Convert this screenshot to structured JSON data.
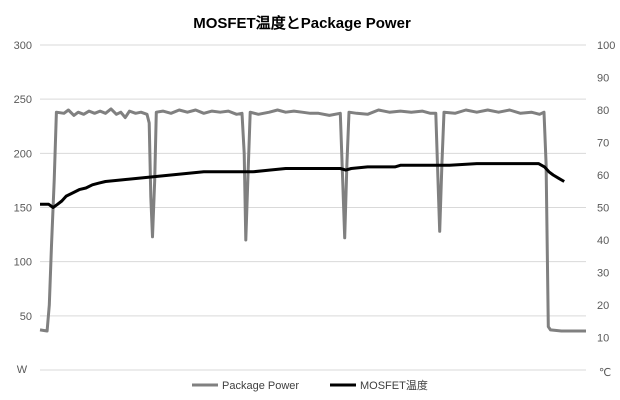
{
  "chart_data": {
    "type": "line",
    "title": "MOSFET温度とPackage Power",
    "y_left": {
      "unit": "W",
      "ticks": [
        "300",
        "250",
        "200",
        "150",
        "100",
        "50"
      ],
      "range": [
        0,
        300
      ]
    },
    "y_right": {
      "unit": "℃",
      "ticks": [
        "100",
        "90",
        "80",
        "70",
        "60",
        "50",
        "40",
        "30",
        "20",
        "10"
      ],
      "range": [
        0,
        100
      ]
    },
    "x": {
      "range": [
        0,
        100
      ],
      "tick_labels": []
    },
    "grid": {
      "horizontal": true
    },
    "legend": {
      "position": "bottom"
    },
    "series": [
      {
        "name": "Package Power",
        "axis": "left",
        "color": "#808080",
        "points": [
          [
            0,
            37
          ],
          [
            1.3,
            36
          ],
          [
            1.7,
            60
          ],
          [
            2.1,
            115
          ],
          [
            2.6,
            175
          ],
          [
            3.0,
            238
          ],
          [
            4.4,
            237
          ],
          [
            5.2,
            240
          ],
          [
            6.2,
            235
          ],
          [
            7.0,
            238
          ],
          [
            8.0,
            236
          ],
          [
            9.0,
            239
          ],
          [
            10.0,
            237
          ],
          [
            11.0,
            239
          ],
          [
            12.0,
            237
          ],
          [
            13.0,
            241
          ],
          [
            14.0,
            236
          ],
          [
            14.8,
            238
          ],
          [
            15.6,
            233
          ],
          [
            16.4,
            239
          ],
          [
            17.5,
            237
          ],
          [
            18.5,
            238
          ],
          [
            19.6,
            236
          ],
          [
            20.0,
            228
          ],
          [
            20.3,
            160
          ],
          [
            20.6,
            123
          ],
          [
            21.0,
            175
          ],
          [
            21.3,
            238
          ],
          [
            22.5,
            239
          ],
          [
            24.0,
            237
          ],
          [
            25.5,
            240
          ],
          [
            27.0,
            238
          ],
          [
            28.5,
            240
          ],
          [
            30.0,
            237
          ],
          [
            31.5,
            239
          ],
          [
            33.0,
            238
          ],
          [
            34.5,
            239
          ],
          [
            36.0,
            236
          ],
          [
            37.0,
            237
          ],
          [
            37.4,
            200
          ],
          [
            37.7,
            120
          ],
          [
            38.1,
            180
          ],
          [
            38.5,
            238
          ],
          [
            40.0,
            236
          ],
          [
            42.0,
            238
          ],
          [
            43.5,
            240
          ],
          [
            45.0,
            238
          ],
          [
            46.5,
            239
          ],
          [
            48.0,
            238
          ],
          [
            49.5,
            237
          ],
          [
            51.0,
            237
          ],
          [
            53.0,
            235
          ],
          [
            55.0,
            237
          ],
          [
            55.4,
            180
          ],
          [
            55.8,
            122
          ],
          [
            56.2,
            190
          ],
          [
            56.6,
            238
          ],
          [
            58.0,
            237
          ],
          [
            60.0,
            236
          ],
          [
            62.0,
            240
          ],
          [
            64.0,
            238
          ],
          [
            66.0,
            239
          ],
          [
            68.0,
            238
          ],
          [
            70.0,
            239
          ],
          [
            71.5,
            237
          ],
          [
            72.5,
            237
          ],
          [
            72.9,
            175
          ],
          [
            73.2,
            128
          ],
          [
            73.6,
            190
          ],
          [
            74.0,
            238
          ],
          [
            76.0,
            237
          ],
          [
            78.0,
            240
          ],
          [
            80.0,
            238
          ],
          [
            82.0,
            240
          ],
          [
            84.0,
            238
          ],
          [
            86.0,
            240
          ],
          [
            88.0,
            237
          ],
          [
            90.0,
            238
          ],
          [
            91.5,
            236
          ],
          [
            92.3,
            238
          ],
          [
            92.7,
            190
          ],
          [
            93.1,
            40
          ],
          [
            93.5,
            37
          ],
          [
            95.5,
            36
          ],
          [
            100.0,
            36
          ]
        ]
      },
      {
        "name": "MOSFET温度",
        "axis": "right",
        "color": "#000000",
        "points": [
          [
            0,
            51
          ],
          [
            1.6,
            51
          ],
          [
            2.4,
            50
          ],
          [
            3.2,
            51
          ],
          [
            4.0,
            52
          ],
          [
            4.8,
            53.5
          ],
          [
            6.0,
            54.5
          ],
          [
            7.2,
            55.5
          ],
          [
            8.4,
            56
          ],
          [
            9.6,
            57
          ],
          [
            10.8,
            57.5
          ],
          [
            12.0,
            58
          ],
          [
            15.0,
            58.5
          ],
          [
            18.0,
            59
          ],
          [
            21.0,
            59.5
          ],
          [
            24.0,
            60
          ],
          [
            27.0,
            60.5
          ],
          [
            30.0,
            61
          ],
          [
            33.0,
            61
          ],
          [
            36.0,
            61
          ],
          [
            39.0,
            61
          ],
          [
            42.0,
            61.5
          ],
          [
            45.0,
            62
          ],
          [
            50.0,
            62
          ],
          [
            55.0,
            62
          ],
          [
            56.0,
            61.5
          ],
          [
            57.0,
            62
          ],
          [
            60.0,
            62.5
          ],
          [
            65.0,
            62.5
          ],
          [
            66.0,
            63
          ],
          [
            70.0,
            63
          ],
          [
            75.0,
            63
          ],
          [
            80.0,
            63.5
          ],
          [
            85.0,
            63.5
          ],
          [
            90.0,
            63.5
          ],
          [
            91.3,
            63.5
          ],
          [
            92.4,
            62.5
          ],
          [
            93.2,
            61
          ],
          [
            94.0,
            60
          ],
          [
            95.0,
            59
          ],
          [
            96.0,
            58
          ]
        ]
      }
    ]
  }
}
